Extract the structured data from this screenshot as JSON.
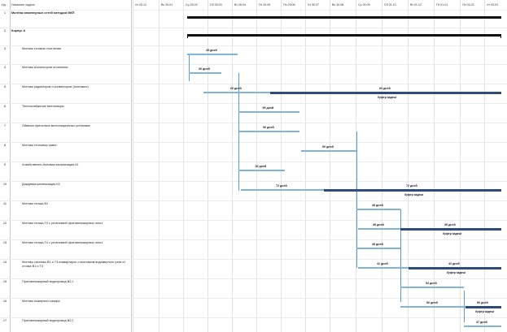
{
  "header": {
    "id_label": "Ид.",
    "name_label": "Название задачи",
    "timescale": [
      "Чт 25.12",
      "Вс 25.01",
      "Ср 25.02",
      "Сб 28.03",
      "Вт 28.04",
      "Пт 29.05",
      "Пн 29.06",
      "Чт 30.07",
      "Вс 30.08",
      "Ср 30.09",
      "Сб 31.10",
      "Вт 01.12",
      "Пт 01.01",
      "Пн 01.02",
      "Чт 03.03"
    ]
  },
  "buffer_label": "буфер задачи",
  "tasks": [
    {
      "id": "1",
      "name": "Монтаж инженерных сетей методом МКП"
    },
    {
      "id": "2",
      "name": "Корпус А"
    },
    {
      "id": "3",
      "name": "Монтаж стояков отопления",
      "duration": "45 дней"
    },
    {
      "id": "4",
      "name": "Монтаж коллекторов отопления",
      "duration": "30 дней"
    },
    {
      "id": "5",
      "name": "Монтаж радиаторов и конвекторов (поэтажно)",
      "duration": "60 дней",
      "buffer": "60 дней"
    },
    {
      "id": "6",
      "name": "Теплоснабжение вентиляции",
      "duration": "55 дней"
    },
    {
      "id": "7",
      "name": "Обвязка приточных вентиляционных установок",
      "duration": "50 дней"
    },
    {
      "id": "8",
      "name": "Монтаж тепловых завес",
      "duration": "50 дней"
    },
    {
      "id": "9",
      "name": "Хозяйственно-бытовая канализация К1",
      "duration": "40 дней"
    },
    {
      "id": "10",
      "name": "Дождевая канализация К2",
      "duration": "72 дней",
      "buffer": "72 дней"
    },
    {
      "id": "11",
      "name": "Монтаж стояка В1",
      "duration": "38 дней"
    },
    {
      "id": "12",
      "name": "Монтаж стояка Т3 с установкой противопожарных гильз",
      "duration": "38 дней",
      "buffer": "38 дней"
    },
    {
      "id": "13",
      "name": "Монтаж стояка Т4 с установкой противопожарных гильз",
      "duration": "38 дней"
    },
    {
      "id": "14",
      "name": "Монтаж системы В1 и Т3 поквартирно с монтажом водомерного узла от стояка В1 и Т3",
      "duration": "42 дней",
      "buffer": "42 дней"
    },
    {
      "id": "15",
      "name": "Противопожарный водопровод В2.1",
      "duration": "54 дней"
    },
    {
      "id": "16",
      "name": "Монтаж пожарного шкафа",
      "duration": "56 дней",
      "buffer": "56 дней"
    },
    {
      "id": "17",
      "name": "Противопожарный водопровод В2.2",
      "duration": "37 дней"
    }
  ]
}
